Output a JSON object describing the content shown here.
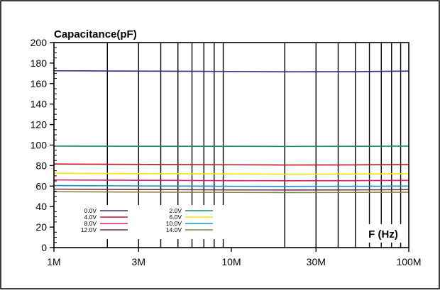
{
  "chart_data": {
    "type": "line",
    "title": "Capacitance(pF)",
    "xlabel": "F (Hz)",
    "ylabel": "",
    "xscale": "log",
    "xlim": [
      1000000,
      100000000
    ],
    "ylim": [
      0,
      200
    ],
    "x_ticks": [
      {
        "value": 1000000,
        "label": "1M"
      },
      {
        "value": 3000000,
        "label": "3M"
      },
      {
        "value": 10000000,
        "label": "10M"
      },
      {
        "value": 30000000,
        "label": "30M"
      },
      {
        "value": 100000000,
        "label": "100M"
      }
    ],
    "y_ticks": [
      0,
      20,
      40,
      60,
      80,
      100,
      120,
      140,
      160,
      180,
      200
    ],
    "grid": "vertical-major",
    "legend_position": "bottom-left",
    "x": [
      1000000,
      2000000,
      5000000,
      10000000,
      20000000,
      50000000,
      100000000
    ],
    "series": [
      {
        "name": "0.0V",
        "color": "#2b2f86",
        "values": [
          172.5,
          172.3,
          172.0,
          171.8,
          171.5,
          171.6,
          172.2
        ]
      },
      {
        "name": "2.0V",
        "color": "#14935a",
        "values": [
          99.0,
          98.9,
          98.8,
          98.8,
          98.7,
          98.8,
          99.0
        ]
      },
      {
        "name": "4.0V",
        "color": "#c8102e",
        "values": [
          81.5,
          81.3,
          81.0,
          80.8,
          80.6,
          80.7,
          81.0
        ]
      },
      {
        "name": "6.0V",
        "color": "#f2e600",
        "values": [
          72.5,
          72.3,
          72.0,
          71.8,
          71.6,
          71.7,
          72.0
        ]
      },
      {
        "name": "8.0V",
        "color": "#e0186c",
        "values": [
          66.0,
          65.8,
          65.5,
          65.3,
          65.2,
          65.3,
          65.5
        ]
      },
      {
        "name": "10.0V",
        "color": "#1b8fc9",
        "values": [
          60.5,
          60.3,
          60.0,
          59.8,
          59.7,
          59.8,
          60.0
        ]
      },
      {
        "name": "12.0V",
        "color": "#7b2f3e",
        "values": [
          57.0,
          56.8,
          56.5,
          56.3,
          56.2,
          56.3,
          56.5
        ]
      },
      {
        "name": "14.0V",
        "color": "#8a8146",
        "values": [
          54.5,
          54.3,
          54.0,
          53.8,
          53.7,
          53.8,
          54.0
        ]
      }
    ]
  }
}
